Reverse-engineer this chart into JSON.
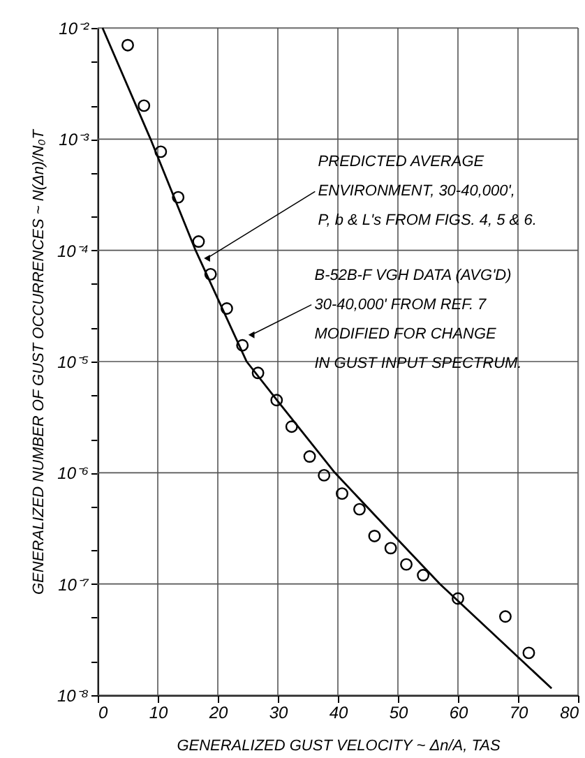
{
  "chart_data": {
    "type": "scatter",
    "xlabel": "GENERALIZED GUST VELOCITY ~ Δn/A, TAS",
    "ylabel": "GENERALIZED NUMBER OF GUST OCCURRENCES ~ N(Δn)/N₀T",
    "log": "y",
    "grid": true,
    "marker": "circle",
    "xlim": [
      0,
      80
    ],
    "xticks": [
      0,
      10,
      20,
      30,
      40,
      50,
      60,
      70,
      80
    ],
    "ylim": [
      1e-08,
      0.01
    ],
    "yticks": [
      {
        "value": 1e-08,
        "label": "10⁻⁸"
      },
      {
        "value": 2e-08,
        "label": null
      },
      {
        "value": 5e-08,
        "label": null
      },
      {
        "value": 1e-07,
        "label": "10⁻⁷"
      },
      {
        "value": 2e-07,
        "label": null
      },
      {
        "value": 5e-07,
        "label": null
      },
      {
        "value": 1e-06,
        "label": "10⁻⁶"
      },
      {
        "value": 2e-06,
        "label": null
      },
      {
        "value": 5e-06,
        "label": null
      },
      {
        "value": 1e-05,
        "label": "10⁻⁵"
      },
      {
        "value": 2e-05,
        "label": null
      },
      {
        "value": 5e-05,
        "label": null
      },
      {
        "value": 0.0001,
        "label": "10⁻⁴"
      },
      {
        "value": 0.0002,
        "label": null
      },
      {
        "value": 0.0005,
        "label": null
      },
      {
        "value": 0.001,
        "label": "10⁻³"
      },
      {
        "value": 0.002,
        "label": null
      },
      {
        "value": 0.005,
        "label": null
      },
      {
        "value": 0.01,
        "label": "10⁻²"
      }
    ],
    "series": [
      {
        "color": "#000000",
        "x": [
          5.0,
          7.7,
          10.5,
          13.4,
          16.8,
          18.8,
          21.5,
          24.1,
          26.7,
          29.8,
          32.3,
          35.3,
          37.7,
          40.7,
          43.6,
          46.1,
          48.8,
          51.4,
          54.2,
          60.0,
          67.9,
          71.8
        ],
        "values": [
          0.007,
          0.002,
          0.00077,
          0.0003,
          0.00012,
          6.1e-05,
          3e-05,
          1.4e-05,
          7.9e-06,
          4.5e-06,
          2.6e-06,
          1.4e-06,
          9.5e-07,
          6.5e-07,
          4.7e-07,
          2.7e-07,
          2.1e-07,
          1.5e-07,
          1.2e-07,
          7.4e-08,
          5.1e-08,
          2.4e-08
        ]
      },
      {
        "type": "line",
        "color": "#000000",
        "marker": "none",
        "line_style": "solid",
        "x": [
          0.8,
          8.8,
          16.3,
          24.8,
          30.0,
          39.5,
          50.0,
          57.0,
          75.6
        ],
        "values": [
          0.01,
          0.001,
          0.0001,
          1e-05,
          4.4e-06,
          1e-06,
          2.5e-07,
          1e-07,
          1.15e-08
        ]
      }
    ],
    "annotations": [
      {
        "text": "PREDICTED AVERAGE\nENVIRONMENT, 30-40,000',\nP, b & L's FROM FIGS. 4, 5 & 6.",
        "x": 18.2,
        "y": 8.5e-05
      },
      {
        "text": "B-52B-F VGH DATA (AVG'D)\n30-40,000' FROM REF. 7\nMODIFIED FOR CHANGE\nIN GUST INPUT SPECTRUM.",
        "x": 25.6,
        "y": 1.74e-05
      }
    ]
  }
}
